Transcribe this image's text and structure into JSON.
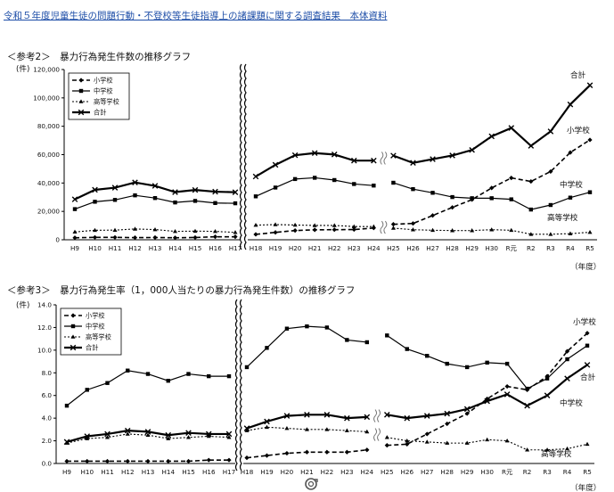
{
  "doc_title": "令和５年度児童生徒の問題行動・不登校等生徒指導上の諸課題に関する調査結果　本体資料",
  "charts": [
    {
      "title": "＜参考2＞　暴力行為発生件数の推移グラフ",
      "unit_label": "(件)",
      "year_unit": "（年度）",
      "legend": [
        "小学校",
        "中学校",
        "高等学校",
        "合計"
      ],
      "end_labels": [
        "合計",
        "小学校",
        "中学校",
        "高等学校"
      ]
    },
    {
      "title": "＜参考3＞　暴力行為発生率（1，000人当たりの暴力行為発生件数）の推移グラフ",
      "unit_label": "(件)",
      "year_unit": "（年度）",
      "legend": [
        "小学校",
        "中学校",
        "高等学校",
        "合計"
      ],
      "end_labels": [
        "小学校",
        "中学校",
        "合計",
        "高等学校"
      ]
    }
  ],
  "chart_data": [
    {
      "type": "line",
      "title": "暴力行為発生件数の推移グラフ",
      "ylabel": "(件)",
      "xlabel": "（年度）",
      "ylim": [
        0,
        120000
      ],
      "yticks": [
        0,
        20000,
        40000,
        60000,
        80000,
        100000,
        120000
      ],
      "ytick_labels": [
        "0",
        "20,000",
        "40,000",
        "60,000",
        "80,000",
        "100,000",
        "120,000"
      ],
      "x_left": [
        "H9",
        "H10",
        "H11",
        "H12",
        "H13",
        "H14",
        "H15",
        "H16",
        "H17"
      ],
      "x_right": [
        "H18",
        "H19",
        "H20",
        "H21",
        "H22",
        "H23",
        "H24",
        "H25",
        "H26",
        "H27",
        "H28",
        "H29",
        "H30",
        "R元",
        "R2",
        "R3",
        "R4",
        "R5"
      ],
      "legend_position": "top-left",
      "grid": false,
      "series": [
        {
          "name": "小学校",
          "color": "#000000",
          "style": "dashed",
          "marker": "diamond",
          "left": [
            1400,
            1700,
            1700,
            1500,
            1600,
            1400,
            1600,
            2100,
            2100
          ],
          "right": [
            3800,
            5200,
            6500,
            7000,
            7100,
            7200,
            8300,
            10900,
            11500,
            17100,
            22800,
            28300,
            36500,
            43600,
            41100,
            48100,
            61500,
            70400
          ]
        },
        {
          "name": "中学校",
          "color": "#000000",
          "style": "solid",
          "marker": "square",
          "left": [
            21600,
            26800,
            28100,
            31300,
            29400,
            26300,
            27400,
            25900,
            25700
          ],
          "right": [
            30600,
            36800,
            42800,
            43700,
            42100,
            39300,
            38200,
            40200,
            35700,
            33100,
            30100,
            29300,
            29300,
            28500,
            21300,
            24500,
            29700,
            33500
          ]
        },
        {
          "name": "高等学校",
          "color": "#000000",
          "style": "dotted",
          "marker": "triangle",
          "left": [
            5500,
            6700,
            6800,
            7600,
            7200,
            5900,
            6100,
            5900,
            5200
          ],
          "right": [
            10300,
            10700,
            10400,
            10100,
            10100,
            9300,
            9300,
            8200,
            7100,
            6700,
            6500,
            6500,
            7100,
            6700,
            3900,
            3900,
            4300,
            5300
          ]
        },
        {
          "name": "合計",
          "color": "#000000",
          "style": "solid-thick",
          "marker": "cross",
          "left": [
            28500,
            35200,
            36700,
            40400,
            38000,
            33600,
            35100,
            33900,
            33500
          ],
          "right": [
            44600,
            52800,
            59600,
            61100,
            60100,
            55800,
            55800,
            59300,
            54200,
            56800,
            59400,
            63300,
            72900,
            78800,
            66200,
            76400,
            95400,
            108900
          ]
        }
      ]
    },
    {
      "type": "line",
      "title": "暴力行為発生率（1，000人当たりの暴力行為発生件数）の推移グラフ",
      "ylabel": "(件)",
      "xlabel": "（年度）",
      "ylim": [
        0,
        14
      ],
      "yticks": [
        0,
        2,
        4,
        6,
        8,
        10,
        12,
        14
      ],
      "ytick_labels": [
        "0.0",
        "2.0",
        "4.0",
        "6.0",
        "8.0",
        "10.0",
        "12.0",
        "14.0"
      ],
      "x_left": [
        "H9",
        "H10",
        "H11",
        "H12",
        "H13",
        "H14",
        "H15",
        "H16",
        "H17"
      ],
      "x_right": [
        "H18",
        "H19",
        "H20",
        "H21",
        "H22",
        "H23",
        "H24",
        "H25",
        "H26",
        "H27",
        "H28",
        "H29",
        "H30",
        "R元",
        "R2",
        "R3",
        "R4",
        "R5"
      ],
      "legend_position": "top-left",
      "grid": false,
      "series": [
        {
          "name": "小学校",
          "color": "#000000",
          "style": "dashed",
          "marker": "diamond",
          "left": [
            0.2,
            0.2,
            0.2,
            0.2,
            0.2,
            0.2,
            0.2,
            0.3,
            0.3
          ],
          "right": [
            0.5,
            0.7,
            0.9,
            1.0,
            1.0,
            1.0,
            1.2,
            1.6,
            1.7,
            2.6,
            3.5,
            4.4,
            5.7,
            6.8,
            6.5,
            7.7,
            9.9,
            11.5
          ]
        },
        {
          "name": "中学校",
          "color": "#000000",
          "style": "solid",
          "marker": "square",
          "left": [
            5.1,
            6.5,
            7.1,
            8.2,
            7.9,
            7.3,
            7.9,
            7.7,
            7.7
          ],
          "right": [
            8.5,
            10.2,
            11.9,
            12.1,
            12.0,
            10.9,
            10.7,
            11.3,
            10.1,
            9.5,
            8.8,
            8.5,
            8.9,
            8.8,
            6.6,
            7.5,
            9.2,
            10.4
          ]
        },
        {
          "name": "高等学校",
          "color": "#000000",
          "style": "dotted",
          "marker": "triangle",
          "left": [
            1.8,
            2.2,
            2.3,
            2.6,
            2.5,
            2.2,
            2.3,
            2.4,
            2.3
          ],
          "right": [
            2.9,
            3.2,
            3.1,
            3.0,
            3.0,
            2.9,
            2.8,
            2.3,
            2.0,
            1.9,
            1.8,
            1.8,
            2.1,
            2.0,
            1.2,
            1.2,
            1.3,
            1.7
          ]
        },
        {
          "name": "合計",
          "color": "#000000",
          "style": "solid-thick",
          "marker": "cross",
          "left": [
            1.9,
            2.4,
            2.6,
            2.9,
            2.8,
            2.5,
            2.7,
            2.6,
            2.6
          ],
          "right": [
            3.1,
            3.7,
            4.2,
            4.3,
            4.3,
            4.0,
            4.1,
            4.3,
            4.0,
            4.2,
            4.4,
            4.8,
            5.5,
            6.1,
            5.1,
            6.0,
            7.5,
            8.7
          ]
        }
      ]
    }
  ]
}
